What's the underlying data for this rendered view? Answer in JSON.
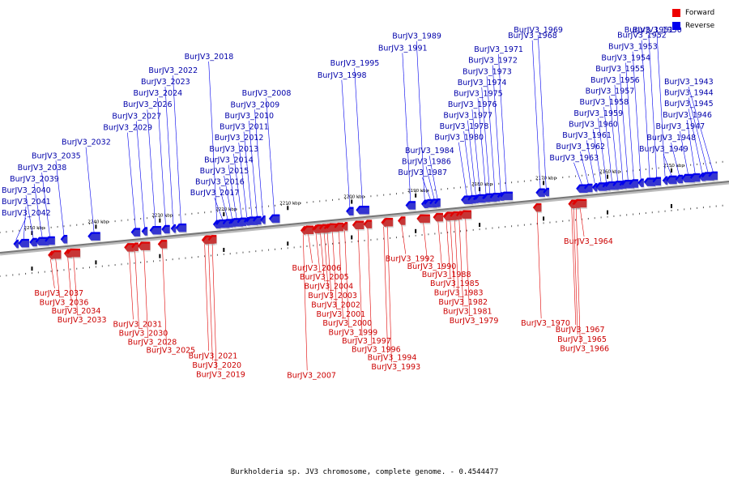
{
  "caption": "Burkholderia sp. JV3 chromosome, complete genome. - 0.4544477",
  "legend": [
    {
      "label": "Forward",
      "color": "#ff0000"
    },
    {
      "label": "Reverse",
      "color": "#0000ff"
    }
  ],
  "colors": {
    "forward": "#e00000",
    "reverse": "#0000ee",
    "forward_label": "#cc0000",
    "reverse_label": "#0000aa",
    "axis": "#888888"
  },
  "scale": [
    {
      "label": "2150 kbp",
      "kbp": 2150
    },
    {
      "label": "2160 kbp",
      "kbp": 2160
    },
    {
      "label": "2170 kbp",
      "kbp": 2170
    },
    {
      "label": "2180 kbp",
      "kbp": 2180
    },
    {
      "label": "2190 kbp",
      "kbp": 2190
    },
    {
      "label": "2200 kbp",
      "kbp": 2200
    },
    {
      "label": "2210 kbp",
      "kbp": 2210
    },
    {
      "label": "2220 kbp",
      "kbp": 2220
    },
    {
      "label": "2230 kbp",
      "kbp": 2230
    },
    {
      "label": "2240 kbp",
      "kbp": 2240
    },
    {
      "label": "2250 kbp",
      "kbp": 2250
    }
  ],
  "genes": [
    {
      "name": "BurJV3_1943",
      "strand": "reverse",
      "kbp": 2143.5
    },
    {
      "name": "BurJV3_1944",
      "strand": "reverse",
      "kbp": 2144.3
    },
    {
      "name": "BurJV3_1945",
      "strand": "reverse",
      "kbp": 2145.2
    },
    {
      "name": "BurJV3_1946",
      "strand": "reverse",
      "kbp": 2146.3
    },
    {
      "name": "BurJV3_1947",
      "strand": "reverse",
      "kbp": 2147.4
    },
    {
      "name": "BurJV3_1948",
      "strand": "reverse",
      "kbp": 2148.8
    },
    {
      "name": "BurJV3_1949",
      "strand": "reverse",
      "kbp": 2150.0
    },
    {
      "name": "BurJV3_1950",
      "strand": "reverse",
      "kbp": 2151.0
    },
    {
      "name": "BurJV3_1951",
      "strand": "reverse",
      "kbp": 2152.3
    },
    {
      "name": "BurJV3_1952",
      "strand": "reverse",
      "kbp": 2153.4
    },
    {
      "name": "BurJV3_1953",
      "strand": "reverse",
      "kbp": 2154.8
    },
    {
      "name": "BurJV3_1954",
      "strand": "reverse",
      "kbp": 2155.9
    },
    {
      "name": "BurJV3_1955",
      "strand": "reverse",
      "kbp": 2156.8
    },
    {
      "name": "BurJV3_1956",
      "strand": "reverse",
      "kbp": 2157.6
    },
    {
      "name": "BurJV3_1957",
      "strand": "reverse",
      "kbp": 2158.4
    },
    {
      "name": "BurJV3_1958",
      "strand": "reverse",
      "kbp": 2159.3
    },
    {
      "name": "BurJV3_1959",
      "strand": "reverse",
      "kbp": 2160.2
    },
    {
      "name": "BurJV3_1960",
      "strand": "reverse",
      "kbp": 2161.0
    },
    {
      "name": "BurJV3_1961",
      "strand": "reverse",
      "kbp": 2162.0
    },
    {
      "name": "BurJV3_1962",
      "strand": "reverse",
      "kbp": 2163.0
    },
    {
      "name": "BurJV3_1963",
      "strand": "reverse",
      "kbp": 2164.0
    },
    {
      "name": "BurJV3_1964",
      "strand": "forward",
      "kbp": 2164.3
    },
    {
      "name": "BurJV3_1965",
      "strand": "forward",
      "kbp": 2165.3
    },
    {
      "name": "BurJV3_1966",
      "strand": "forward",
      "kbp": 2164.9
    },
    {
      "name": "BurJV3_1967",
      "strand": "forward",
      "kbp": 2165.6
    },
    {
      "name": "BurJV3_1968",
      "strand": "reverse",
      "kbp": 2170.5
    },
    {
      "name": "BurJV3_1969",
      "strand": "reverse",
      "kbp": 2169.6
    },
    {
      "name": "BurJV3_1970",
      "strand": "forward",
      "kbp": 2171.0
    },
    {
      "name": "BurJV3_1971",
      "strand": "reverse",
      "kbp": 2175.8
    },
    {
      "name": "BurJV3_1972",
      "strand": "reverse",
      "kbp": 2176.7
    },
    {
      "name": "BurJV3_1973",
      "strand": "reverse",
      "kbp": 2177.6
    },
    {
      "name": "BurJV3_1974",
      "strand": "reverse",
      "kbp": 2178.4
    },
    {
      "name": "BurJV3_1975",
      "strand": "reverse",
      "kbp": 2179.0
    },
    {
      "name": "BurJV3_1976",
      "strand": "reverse",
      "kbp": 2179.9
    },
    {
      "name": "BurJV3_1977",
      "strand": "reverse",
      "kbp": 2180.6
    },
    {
      "name": "BurJV3_1978",
      "strand": "reverse",
      "kbp": 2181.2
    },
    {
      "name": "BurJV3_1979",
      "strand": "forward",
      "kbp": 2182.2
    },
    {
      "name": "BurJV3_1980",
      "strand": "reverse",
      "kbp": 2182.0
    },
    {
      "name": "BurJV3_1981",
      "strand": "forward",
      "kbp": 2183.2
    },
    {
      "name": "BurJV3_1982",
      "strand": "forward",
      "kbp": 2183.9
    },
    {
      "name": "BurJV3_1983",
      "strand": "forward",
      "kbp": 2184.6
    },
    {
      "name": "BurJV3_1984",
      "strand": "reverse",
      "kbp": 2186.6
    },
    {
      "name": "BurJV3_1985",
      "strand": "forward",
      "kbp": 2185.2
    },
    {
      "name": "BurJV3_1986",
      "strand": "reverse",
      "kbp": 2187.1
    },
    {
      "name": "BurJV3_1987",
      "strand": "reverse",
      "kbp": 2187.7
    },
    {
      "name": "BurJV3_1988",
      "strand": "forward",
      "kbp": 2186.5
    },
    {
      "name": "BurJV3_1989",
      "strand": "reverse",
      "kbp": 2188.6
    },
    {
      "name": "BurJV3_1990",
      "strand": "forward",
      "kbp": 2188.8
    },
    {
      "name": "BurJV3_1991",
      "strand": "reverse",
      "kbp": 2190.8
    },
    {
      "name": "BurJV3_1992",
      "strand": "forward",
      "kbp": 2192.2
    },
    {
      "name": "BurJV3_1993",
      "strand": "forward",
      "kbp": 2194.4
    },
    {
      "name": "BurJV3_1994",
      "strand": "forward",
      "kbp": 2195.0
    },
    {
      "name": "BurJV3_1995",
      "strand": "reverse",
      "kbp": 2198.3
    },
    {
      "name": "BurJV3_1996",
      "strand": "forward",
      "kbp": 2197.5
    },
    {
      "name": "BurJV3_1997",
      "strand": "forward",
      "kbp": 2199.0
    },
    {
      "name": "BurJV3_1998",
      "strand": "reverse",
      "kbp": 2200.3
    },
    {
      "name": "BurJV3_1999",
      "strand": "forward",
      "kbp": 2201.1
    },
    {
      "name": "BurJV3_2000",
      "strand": "forward",
      "kbp": 2202.0
    },
    {
      "name": "BurJV3_2001",
      "strand": "forward",
      "kbp": 2203.0
    },
    {
      "name": "BurJV3_2002",
      "strand": "forward",
      "kbp": 2203.8
    },
    {
      "name": "BurJV3_2003",
      "strand": "forward",
      "kbp": 2204.3
    },
    {
      "name": "BurJV3_2004",
      "strand": "forward",
      "kbp": 2204.9
    },
    {
      "name": "BurJV3_2005",
      "strand": "forward",
      "kbp": 2205.6
    },
    {
      "name": "BurJV3_2006",
      "strand": "forward",
      "kbp": 2206.8
    },
    {
      "name": "BurJV3_2007",
      "strand": "forward",
      "kbp": 2207.6
    },
    {
      "name": "BurJV3_2008",
      "strand": "reverse",
      "kbp": 2212.1
    },
    {
      "name": "BurJV3_2009",
      "strand": "reverse",
      "kbp": 2213.9
    },
    {
      "name": "BurJV3_2010",
      "strand": "reverse",
      "kbp": 2214.8
    },
    {
      "name": "BurJV3_2011",
      "strand": "reverse",
      "kbp": 2215.6
    },
    {
      "name": "BurJV3_2012",
      "strand": "reverse",
      "kbp": 2216.4
    },
    {
      "name": "BurJV3_2013",
      "strand": "reverse",
      "kbp": 2217.2
    },
    {
      "name": "BurJV3_2014",
      "strand": "reverse",
      "kbp": 2218.0
    },
    {
      "name": "BurJV3_2015",
      "strand": "reverse",
      "kbp": 2218.7
    },
    {
      "name": "BurJV3_2016",
      "strand": "reverse",
      "kbp": 2219.4
    },
    {
      "name": "BurJV3_2017",
      "strand": "reverse",
      "kbp": 2220.2
    },
    {
      "name": "BurJV3_2018",
      "strand": "reverse",
      "kbp": 2221.1
    },
    {
      "name": "BurJV3_2019",
      "strand": "forward",
      "kbp": 2221.8
    },
    {
      "name": "BurJV3_2020",
      "strand": "forward",
      "kbp": 2222.4
    },
    {
      "name": "BurJV3_2021",
      "strand": "forward",
      "kbp": 2223.0
    },
    {
      "name": "BurJV3_2022",
      "strand": "reverse",
      "kbp": 2226.7
    },
    {
      "name": "BurJV3_2023",
      "strand": "reverse",
      "kbp": 2227.9
    },
    {
      "name": "BurJV3_2024",
      "strand": "reverse",
      "kbp": 2229.1
    },
    {
      "name": "BurJV3_2025",
      "strand": "forward",
      "kbp": 2229.6
    },
    {
      "name": "BurJV3_2026",
      "strand": "reverse",
      "kbp": 2230.7
    },
    {
      "name": "BurJV3_2027",
      "strand": "reverse",
      "kbp": 2232.4
    },
    {
      "name": "BurJV3_2028",
      "strand": "forward",
      "kbp": 2232.5
    },
    {
      "name": "BurJV3_2029",
      "strand": "reverse",
      "kbp": 2233.8
    },
    {
      "name": "BurJV3_2030",
      "strand": "forward",
      "kbp": 2233.9
    },
    {
      "name": "BurJV3_2031",
      "strand": "forward",
      "kbp": 2234.8
    },
    {
      "name": "BurJV3_2032",
      "strand": "reverse",
      "kbp": 2240.3
    },
    {
      "name": "BurJV3_2033",
      "strand": "forward",
      "kbp": 2243.5
    },
    {
      "name": "BurJV3_2034",
      "strand": "forward",
      "kbp": 2244.4
    },
    {
      "name": "BurJV3_2035",
      "strand": "reverse",
      "kbp": 2245.0
    },
    {
      "name": "BurJV3_2036",
      "strand": "forward",
      "kbp": 2246.3
    },
    {
      "name": "BurJV3_2037",
      "strand": "forward",
      "kbp": 2247.1
    },
    {
      "name": "BurJV3_2038",
      "strand": "reverse",
      "kbp": 2247.2
    },
    {
      "name": "BurJV3_2039",
      "strand": "reverse",
      "kbp": 2248.4
    },
    {
      "name": "BurJV3_2040",
      "strand": "reverse",
      "kbp": 2249.8
    },
    {
      "name": "BurJV3_2041",
      "strand": "reverse",
      "kbp": 2251.3
    },
    {
      "name": "BurJV3_2042",
      "strand": "reverse",
      "kbp": 2252.5
    }
  ]
}
